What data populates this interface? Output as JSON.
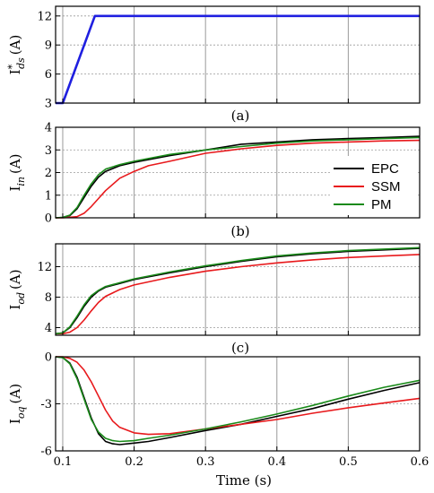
{
  "x_axis": {
    "label": "Time (s)",
    "range": [
      0.09,
      0.6
    ],
    "ticks": [
      0.1,
      0.2,
      0.3,
      0.4,
      0.5,
      0.6
    ],
    "tick_labels": [
      "0.1",
      "0.2",
      "0.3",
      "0.4",
      "0.5",
      "0.6"
    ]
  },
  "legend": {
    "entries": [
      {
        "name": "EPC",
        "color": "#000000"
      },
      {
        "name": "SSM",
        "color": "#e8191c"
      },
      {
        "name": "PM",
        "color": "#1a8a1a"
      }
    ]
  },
  "chart_data": [
    {
      "type": "line",
      "caption": "(a)",
      "ylabel_main": "I",
      "ylabel_sup": "*",
      "ylabel_sub": "ds",
      "ylabel_unit": "(A)",
      "ylim": [
        3,
        13
      ],
      "yticks": [
        3,
        6,
        9,
        12
      ],
      "ytick_labels": [
        "3",
        "6",
        "9",
        "12"
      ],
      "grid": true,
      "series": [
        {
          "color": "#1f1fe0",
          "x": [
            0.09,
            0.1,
            0.145,
            0.6
          ],
          "y": [
            3,
            3,
            12,
            12
          ]
        }
      ]
    },
    {
      "type": "line",
      "caption": "(b)",
      "ylabel_main": "I",
      "ylabel_sub": "in",
      "ylabel_unit": "(A)",
      "ylim": [
        0,
        4
      ],
      "yticks": [
        0,
        1,
        2,
        3,
        4
      ],
      "ytick_labels": [
        "0",
        "1",
        "2",
        "3",
        "4"
      ],
      "grid": true,
      "legend": "right",
      "series": [
        {
          "name": "EPC",
          "color": "#000000",
          "x": [
            0.09,
            0.1,
            0.11,
            0.12,
            0.13,
            0.14,
            0.15,
            0.16,
            0.18,
            0.2,
            0.25,
            0.3,
            0.35,
            0.4,
            0.45,
            0.5,
            0.55,
            0.6
          ],
          "y": [
            0,
            0.02,
            0.1,
            0.4,
            0.9,
            1.4,
            1.8,
            2.05,
            2.3,
            2.45,
            2.75,
            3.0,
            3.25,
            3.35,
            3.45,
            3.5,
            3.55,
            3.6
          ]
        },
        {
          "name": "SSM",
          "color": "#e8191c",
          "x": [
            0.09,
            0.1,
            0.12,
            0.13,
            0.14,
            0.15,
            0.16,
            0.18,
            0.2,
            0.22,
            0.25,
            0.3,
            0.35,
            0.4,
            0.45,
            0.5,
            0.55,
            0.6
          ],
          "y": [
            0,
            0.0,
            0.05,
            0.2,
            0.5,
            0.85,
            1.2,
            1.75,
            2.05,
            2.3,
            2.5,
            2.85,
            3.05,
            3.2,
            3.3,
            3.35,
            3.4,
            3.42
          ]
        },
        {
          "name": "PM",
          "color": "#1a8a1a",
          "x": [
            0.09,
            0.1,
            0.11,
            0.12,
            0.13,
            0.14,
            0.15,
            0.16,
            0.18,
            0.2,
            0.25,
            0.3,
            0.35,
            0.4,
            0.45,
            0.5,
            0.55,
            0.6
          ],
          "y": [
            0,
            0.02,
            0.12,
            0.45,
            1.0,
            1.5,
            1.9,
            2.15,
            2.35,
            2.5,
            2.8,
            3.0,
            3.15,
            3.3,
            3.4,
            3.45,
            3.5,
            3.55
          ]
        }
      ]
    },
    {
      "type": "line",
      "caption": "(c)",
      "ylabel_main": "I",
      "ylabel_sub": "od",
      "ylabel_unit": "(A)",
      "ylim": [
        3,
        15
      ],
      "yticks": [
        4,
        8,
        12
      ],
      "ytick_labels": [
        "4",
        "8",
        "12"
      ],
      "grid": true,
      "series": [
        {
          "name": "EPC",
          "color": "#000000",
          "x": [
            0.09,
            0.1,
            0.11,
            0.12,
            0.13,
            0.14,
            0.15,
            0.16,
            0.18,
            0.2,
            0.25,
            0.3,
            0.35,
            0.4,
            0.45,
            0.5,
            0.55,
            0.6
          ],
          "y": [
            3.2,
            3.3,
            4.0,
            5.3,
            6.8,
            8.0,
            8.8,
            9.3,
            9.8,
            10.3,
            11.2,
            12.0,
            12.7,
            13.3,
            13.7,
            14.0,
            14.2,
            14.4
          ]
        },
        {
          "name": "SSM",
          "color": "#e8191c",
          "x": [
            0.09,
            0.1,
            0.11,
            0.12,
            0.13,
            0.14,
            0.15,
            0.16,
            0.18,
            0.2,
            0.25,
            0.3,
            0.35,
            0.4,
            0.45,
            0.5,
            0.55,
            0.6
          ],
          "y": [
            3.2,
            3.2,
            3.4,
            4.0,
            5.0,
            6.2,
            7.3,
            8.1,
            9.0,
            9.6,
            10.6,
            11.4,
            12.0,
            12.5,
            12.9,
            13.2,
            13.4,
            13.6
          ]
        },
        {
          "name": "PM",
          "color": "#1a8a1a",
          "x": [
            0.09,
            0.1,
            0.11,
            0.12,
            0.13,
            0.14,
            0.15,
            0.16,
            0.18,
            0.2,
            0.25,
            0.3,
            0.35,
            0.4,
            0.45,
            0.5,
            0.55,
            0.6
          ],
          "y": [
            3.2,
            3.3,
            4.1,
            5.5,
            7.0,
            8.2,
            8.9,
            9.4,
            9.9,
            10.4,
            11.3,
            12.1,
            12.8,
            13.4,
            13.8,
            14.1,
            14.3,
            14.5
          ]
        }
      ]
    },
    {
      "type": "line",
      "caption": "",
      "ylabel_main": "I",
      "ylabel_sub": "oq",
      "ylabel_unit": "(A)",
      "ylim": [
        -6,
        0
      ],
      "yticks": [
        0,
        -3,
        -6
      ],
      "ytick_labels": [
        "0",
        "-3",
        "-6"
      ],
      "grid": true,
      "series": [
        {
          "name": "EPC",
          "color": "#000000",
          "x": [
            0.09,
            0.1,
            0.11,
            0.12,
            0.13,
            0.14,
            0.15,
            0.16,
            0.17,
            0.18,
            0.2,
            0.22,
            0.25,
            0.3,
            0.35,
            0.4,
            0.45,
            0.5,
            0.55,
            0.6
          ],
          "y": [
            0,
            -0.05,
            -0.4,
            -1.3,
            -2.6,
            -3.9,
            -4.9,
            -5.4,
            -5.55,
            -5.6,
            -5.5,
            -5.4,
            -5.15,
            -4.7,
            -4.3,
            -3.8,
            -3.3,
            -2.7,
            -2.15,
            -1.65
          ]
        },
        {
          "name": "SSM",
          "color": "#e8191c",
          "x": [
            0.09,
            0.1,
            0.11,
            0.12,
            0.13,
            0.14,
            0.15,
            0.16,
            0.17,
            0.18,
            0.2,
            0.22,
            0.25,
            0.3,
            0.35,
            0.4,
            0.45,
            0.5,
            0.55,
            0.6
          ],
          "y": [
            0,
            0,
            -0.1,
            -0.35,
            -0.85,
            -1.6,
            -2.5,
            -3.4,
            -4.1,
            -4.5,
            -4.85,
            -4.95,
            -4.9,
            -4.6,
            -4.3,
            -4.0,
            -3.6,
            -3.25,
            -2.95,
            -2.65
          ]
        },
        {
          "name": "PM",
          "color": "#1a8a1a",
          "x": [
            0.09,
            0.1,
            0.11,
            0.12,
            0.13,
            0.14,
            0.15,
            0.16,
            0.17,
            0.18,
            0.2,
            0.22,
            0.25,
            0.3,
            0.35,
            0.4,
            0.45,
            0.5,
            0.55,
            0.6
          ],
          "y": [
            0,
            -0.05,
            -0.45,
            -1.4,
            -2.7,
            -4.0,
            -4.8,
            -5.2,
            -5.35,
            -5.4,
            -5.35,
            -5.2,
            -5.0,
            -4.6,
            -4.15,
            -3.65,
            -3.1,
            -2.5,
            -1.95,
            -1.5
          ]
        }
      ]
    }
  ]
}
